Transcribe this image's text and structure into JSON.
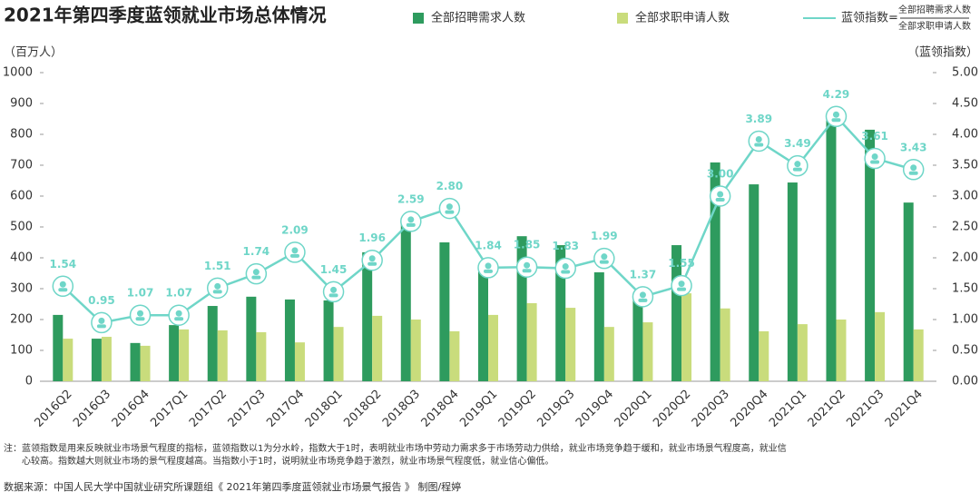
{
  "chart_data": {
    "type": "bar-line",
    "title": "2021年第四季度蓝领就业市场总体情况",
    "y_label": "（百万人）",
    "y2_label": "（蓝领指数）",
    "categories": [
      "2016Q2",
      "2016Q3",
      "2016Q4",
      "2017Q1",
      "2017Q2",
      "2017Q3",
      "2017Q4",
      "2018Q1",
      "2018Q2",
      "2018Q3",
      "2018Q4",
      "2019Q1",
      "2019Q2",
      "2019Q3",
      "2019Q4",
      "2020Q1",
      "2020Q2",
      "2020Q3",
      "2020Q4",
      "2021Q1",
      "2021Q2",
      "2021Q3",
      "2021Q4"
    ],
    "series": [
      {
        "name": "全部招聘需求人数",
        "type": "bar",
        "color": "#2e9b5e",
        "values": [
          215,
          138,
          124,
          182,
          244,
          274,
          265,
          262,
          418,
          530,
          450,
          380,
          470,
          441,
          353,
          265,
          441,
          709,
          638,
          644,
          862,
          815,
          579
        ]
      },
      {
        "name": "全部求职申请人数",
        "type": "bar",
        "color": "#c9dc7c",
        "values": [
          138,
          144,
          115,
          168,
          165,
          159,
          126,
          176,
          212,
          200,
          162,
          215,
          253,
          238,
          176,
          191,
          285,
          236,
          162,
          185,
          200,
          224,
          168
        ]
      },
      {
        "name": "蓝领指数=",
        "type": "line",
        "axis": "y2",
        "color": "#6fd6c8",
        "values": [
          1.54,
          0.95,
          1.07,
          1.07,
          1.51,
          1.74,
          2.09,
          1.45,
          1.96,
          2.59,
          2.8,
          1.84,
          1.85,
          1.83,
          1.99,
          1.37,
          1.55,
          3.0,
          3.89,
          3.49,
          4.29,
          3.61,
          3.43
        ],
        "value_labels": [
          "1.54",
          "0.95",
          "1.07",
          "1.07",
          "1.51",
          "1.74",
          "2.09",
          "1.45",
          "1.96",
          "2.59",
          "2.80",
          "1.84",
          "1.85",
          "1.83",
          "1.99",
          "1.37",
          "1.55",
          "3.00",
          "3.89",
          "3.49",
          "4.29",
          "3.61",
          "3.43"
        ]
      }
    ],
    "legend_formula": {
      "numerator": "全部招聘需求人数",
      "denominator": "全部求职申请人数"
    },
    "ylim": [
      0,
      1000
    ],
    "yticks": [
      0,
      100,
      200,
      300,
      400,
      500,
      600,
      700,
      800,
      900,
      1000
    ],
    "y2lim": [
      0,
      5
    ],
    "y2ticks": [
      {
        "value": 0,
        "label": "0.00"
      },
      {
        "value": 0.5,
        "label": "0.50"
      },
      {
        "value": 1,
        "label": "1.00"
      },
      {
        "value": 1.5,
        "label": "1.50"
      },
      {
        "value": 2,
        "label": "2.00"
      },
      {
        "value": 2.5,
        "label": "2.50"
      },
      {
        "value": 3,
        "label": "3.00"
      },
      {
        "value": 3.5,
        "label": "3.50"
      },
      {
        "value": 4,
        "label": "4.00"
      },
      {
        "value": 4.5,
        "label": "4.50"
      },
      {
        "value": 5,
        "label": "5.00"
      }
    ],
    "grid": false,
    "notes": [
      "注：蓝领指数是用来反映就业市场景气程度的指标，蓝领指数以1为分水岭，指数大于1时，表明就业市场中劳动力需求多于市场劳动力供给，就业市场竞争趋于缓和，就业市场景气程度高，就业信",
      "心较高。指数越大则就业市场的景气程度越高。当指数小于1时，说明就业市场竞争趋于激烈，就业市场景气程度低，就业信心偏低。"
    ],
    "source": "数据来源：中国人民大学中国就业研究所课题组《 2021年第四季度蓝领就业市场景气报告 》     制图/程婷"
  }
}
